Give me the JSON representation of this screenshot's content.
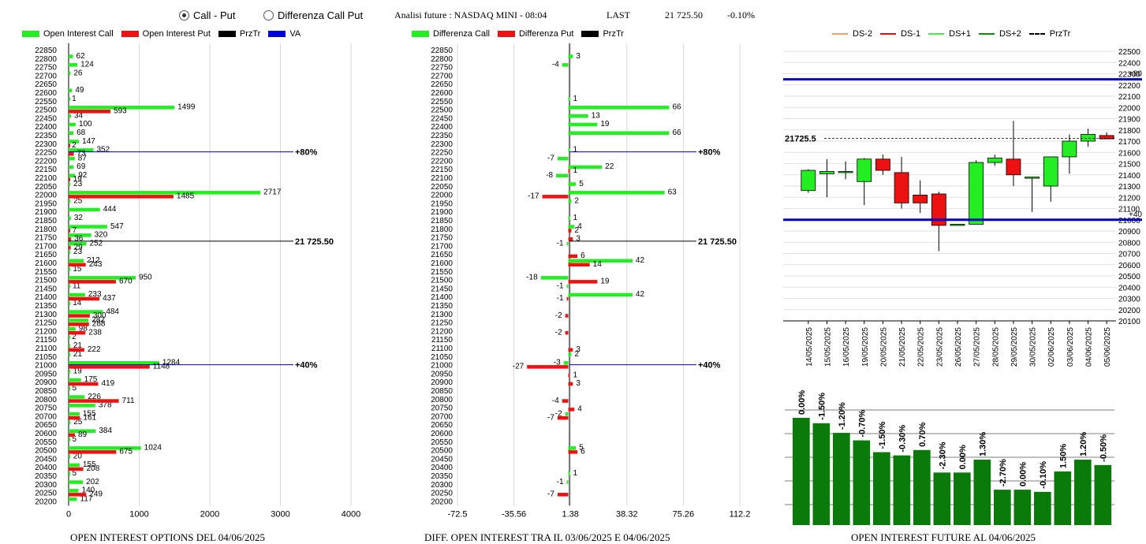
{
  "header": {
    "radio_call_put": "Call - Put",
    "radio_diff": "Differenza Call Put",
    "title": "Analisi future : NASDAQ MINI - 08:04",
    "last_label": "LAST",
    "last_value": "21 725.50",
    "last_change": "-0.10%"
  },
  "legends": {
    "oi": [
      {
        "label": "Open Interest Call",
        "color": "#22ee22",
        "kind": "box"
      },
      {
        "label": "Open Interest Put",
        "color": "#ee1111",
        "kind": "box"
      },
      {
        "label": "PrzTr",
        "color": "#000000",
        "kind": "box"
      },
      {
        "label": "VA",
        "color": "#0000dd",
        "kind": "box"
      }
    ],
    "diff": [
      {
        "label": "Differenza Call",
        "color": "#22ee22",
        "kind": "box"
      },
      {
        "label": "Differenza Put",
        "color": "#ee1111",
        "kind": "box"
      },
      {
        "label": "PrzTr",
        "color": "#000000",
        "kind": "box"
      }
    ],
    "future": [
      {
        "label": "DS-2",
        "color": "#f0a070",
        "kind": "line"
      },
      {
        "label": "DS-1",
        "color": "#dd1111",
        "kind": "line"
      },
      {
        "label": "DS+1",
        "color": "#44ee44",
        "kind": "line"
      },
      {
        "label": "DS+2",
        "color": "#118811",
        "kind": "line"
      },
      {
        "label": "PrzTr",
        "color": "#000000",
        "kind": "dash"
      }
    ]
  },
  "footers": {
    "oi": "OPEN INTEREST OPTIONS DEL 04/06/2025",
    "diff": "DIFF. OPEN INTEREST TRA IL 03/06/2025 E 04/06/2025",
    "future": "OPEN INTEREST FUTURE AL 04/06/2025"
  },
  "chart_data": [
    {
      "type": "bar",
      "orientation": "horizontal",
      "strikes": [
        22850,
        22800,
        22750,
        22700,
        22650,
        22600,
        22550,
        22500,
        22450,
        22400,
        22350,
        22300,
        22250,
        22200,
        22150,
        22100,
        22050,
        22000,
        21950,
        21900,
        21850,
        21800,
        21750,
        21700,
        21650,
        21600,
        21550,
        21500,
        21450,
        21400,
        21350,
        21300,
        21250,
        21200,
        21150,
        21100,
        21050,
        21000,
        20950,
        20900,
        20850,
        20800,
        20750,
        20700,
        20650,
        20600,
        20550,
        20500,
        20450,
        20400,
        20350,
        20300,
        20250,
        20200
      ],
      "series": [
        {
          "name": "Open Interest Call",
          "color": "#22ee22",
          "values": [
            null,
            62,
            124,
            26,
            null,
            49,
            1,
            1499,
            34,
            100,
            68,
            147,
            352,
            87,
            69,
            92,
            23,
            2717,
            25,
            444,
            32,
            547,
            320,
            252,
            23,
            212,
            15,
            950,
            11,
            233,
            14,
            484,
            282,
            98,
            2,
            21,
            21,
            1284,
            19,
            175,
            5,
            226,
            378,
            155,
            25,
            384,
            5,
            1024,
            20,
            155,
            5,
            202,
            140,
            117
          ]
        },
        {
          "name": "Open Interest Put",
          "color": "#ee1111",
          "values": [
            null,
            null,
            null,
            null,
            null,
            null,
            null,
            593,
            null,
            null,
            null,
            2,
            73,
            null,
            null,
            19,
            null,
            1485,
            null,
            null,
            null,
            7,
            36,
            29,
            null,
            243,
            null,
            670,
            null,
            437,
            null,
            300,
            288,
            238,
            null,
            222,
            null,
            1148,
            null,
            419,
            null,
            711,
            null,
            161,
            null,
            89,
            null,
            675,
            null,
            208,
            null,
            null,
            249,
            null
          ]
        }
      ],
      "xlim": [
        0,
        4000
      ],
      "xticks": [
        "0",
        "1000",
        "2000",
        "3000",
        "4000"
      ],
      "ref_lines": [
        {
          "label": "+80%",
          "strike": 22250,
          "color": "#0000cc"
        },
        {
          "label": "21 725.50",
          "strike": 21725.5,
          "color": "#000000"
        },
        {
          "label": "+40%",
          "strike": 21000,
          "color": "#0000cc"
        }
      ]
    },
    {
      "type": "bar",
      "orientation": "horizontal",
      "strikes": [
        22850,
        22800,
        22750,
        22700,
        22650,
        22600,
        22550,
        22500,
        22450,
        22400,
        22350,
        22300,
        22250,
        22200,
        22150,
        22100,
        22050,
        22000,
        21950,
        21900,
        21850,
        21800,
        21750,
        21700,
        21650,
        21600,
        21550,
        21500,
        21450,
        21400,
        21350,
        21300,
        21250,
        21200,
        21150,
        21100,
        21050,
        21000,
        20950,
        20900,
        20850,
        20800,
        20750,
        20700,
        20650,
        20600,
        20550,
        20500,
        20450,
        20400,
        20350,
        20300,
        20250,
        20200
      ],
      "series": [
        {
          "name": "Differenza Call",
          "color": "#22ee22",
          "values": [
            null,
            3,
            -4,
            null,
            null,
            null,
            1,
            66,
            13,
            19,
            66,
            null,
            1,
            -7,
            22,
            -8,
            5,
            63,
            2,
            null,
            1,
            4,
            null,
            -1,
            null,
            42,
            null,
            -18,
            -1,
            42,
            null,
            null,
            null,
            null,
            null,
            null,
            2,
            -3,
            null,
            null,
            null,
            null,
            null,
            -2,
            null,
            null,
            null,
            5,
            null,
            null,
            1,
            -1,
            null,
            null
          ]
        },
        {
          "name": "Differenza Put",
          "color": "#ee1111",
          "values": [
            null,
            null,
            null,
            null,
            null,
            null,
            null,
            null,
            null,
            null,
            null,
            null,
            null,
            null,
            1,
            null,
            null,
            -17,
            null,
            null,
            null,
            2,
            3,
            null,
            6,
            14,
            null,
            19,
            null,
            -1,
            null,
            -2,
            null,
            -2,
            null,
            3,
            null,
            -27,
            1,
            3,
            null,
            -4,
            4,
            -7,
            null,
            null,
            null,
            6,
            null,
            null,
            null,
            null,
            -7,
            null
          ]
        }
      ],
      "xlim": [
        -72.5,
        112.2
      ],
      "xticks": [
        "-72.5",
        "-35.56",
        "1.38",
        "38.32",
        "75.26",
        "112.2"
      ],
      "ref_lines": [
        {
          "label": "+80%",
          "strike": 22250,
          "color": "#0000cc"
        },
        {
          "label": "21 725.50",
          "strike": 21725.5,
          "color": "#000000"
        },
        {
          "label": "+40%",
          "strike": 21000,
          "color": "#0000cc"
        }
      ]
    },
    {
      "type": "candlestick",
      "dates": [
        "14/05/2025",
        "15/05/2025",
        "16/05/2025",
        "19/05/2025",
        "20/05/2025",
        "21/05/2025",
        "22/05/2025",
        "23/05/2025",
        "26/05/2025",
        "27/05/2025",
        "28/05/2025",
        "29/05/2025",
        "30/05/2025",
        "02/06/2025",
        "03/06/2025",
        "04/06/2025",
        "05/06/2025"
      ],
      "ohlc": [
        [
          21260,
          21450,
          21240,
          21440
        ],
        [
          21410,
          21540,
          21200,
          21430
        ],
        [
          21430,
          21520,
          21360,
          21430
        ],
        [
          21340,
          21550,
          21130,
          21540
        ],
        [
          21540,
          21580,
          21400,
          21440
        ],
        [
          21420,
          21560,
          21100,
          21150
        ],
        [
          21220,
          21350,
          21060,
          21150
        ],
        [
          21230,
          21250,
          20720,
          20950
        ],
        [
          20960,
          20960,
          20960,
          20960
        ],
        [
          20960,
          21530,
          20960,
          21510
        ],
        [
          21510,
          21580,
          21480,
          21550
        ],
        [
          21540,
          21880,
          21300,
          21400
        ],
        [
          21380,
          21380,
          21070,
          21380
        ],
        [
          21300,
          21560,
          21160,
          21560
        ],
        [
          21560,
          21760,
          21410,
          21700
        ],
        [
          21700,
          21810,
          21650,
          21760
        ],
        [
          21750,
          21780,
          21720,
          21720
        ]
      ],
      "ylim": [
        20100,
        22500
      ],
      "yticks": [
        22500,
        22400,
        22300,
        22200,
        22100,
        22000,
        21900,
        21800,
        21700,
        21600,
        21500,
        21400,
        21300,
        21200,
        21100,
        21000,
        20900,
        20800,
        20700,
        20600,
        20500,
        20400,
        20300,
        20200,
        20100
      ],
      "ref_lines": [
        {
          "label": "+80",
          "value": 22250,
          "color": "#0000cc"
        },
        {
          "label": "+40",
          "value": 21000,
          "color": "#0000cc"
        }
      ],
      "last_label": "21725.5",
      "last_value": 21725.5
    },
    {
      "type": "bar",
      "series": [
        {
          "name": "Open interest",
          "color": "#0a7a0a",
          "values": [
            100,
            95,
            86,
            79,
            68,
            65,
            70,
            49,
            49,
            61,
            33,
            33,
            31,
            50,
            61,
            56
          ]
        }
      ],
      "labels": [
        "0.00%",
        "-1.50%",
        "-1.20%",
        "-0.70%",
        "-1.50%",
        "-0.30%",
        "0.70%",
        "-2.30%",
        "0.00%",
        "1.30%",
        "-2.70%",
        "0.00%",
        "-0.10%",
        "1.50%",
        "1.20%",
        "-0.50%"
      ]
    }
  ]
}
